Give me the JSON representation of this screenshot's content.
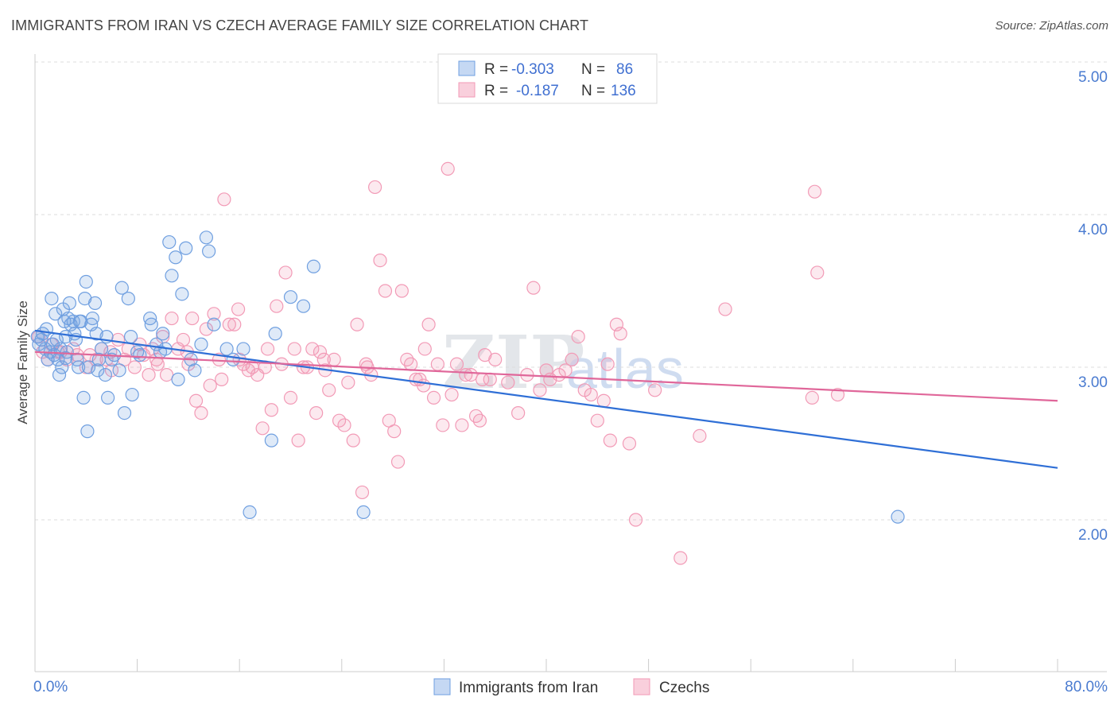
{
  "title": "IMMIGRANTS FROM IRAN VS CZECH AVERAGE FAMILY SIZE CORRELATION CHART",
  "source": "Source: ZipAtlas.com",
  "watermark": {
    "zip": "ZIP",
    "atlas": "atlas"
  },
  "legend": {
    "rows": [
      {
        "r_label": "R =",
        "r_value": "-0.303",
        "n_label": "N =",
        "n_value": "86",
        "color": "#6f9fe0"
      },
      {
        "r_label": "R =",
        "r_value": "-0.187",
        "n_label": "N =",
        "n_value": "136",
        "color": "#f29ab6"
      }
    ]
  },
  "chart_data": {
    "type": "scatter",
    "title": "IMMIGRANTS FROM IRAN VS CZECH AVERAGE FAMILY SIZE CORRELATION CHART",
    "xlabel": "",
    "ylabel": "Average Family Size",
    "xlim": [
      0,
      80
    ],
    "ylim": [
      1.0,
      5.1
    ],
    "x_tick_labels": [
      "0.0%",
      "80.0%"
    ],
    "y_ticks": [
      2.0,
      3.0,
      4.0,
      5.0
    ],
    "y_tick_labels": [
      "2.00",
      "3.00",
      "4.00",
      "5.00"
    ],
    "grid": true,
    "series": [
      {
        "name": "Immigrants from Iran",
        "color": "#6f9fe0",
        "trend": {
          "x": [
            0,
            80
          ],
          "y": [
            3.24,
            2.34
          ]
        },
        "points": [
          [
            0.2,
            3.2
          ],
          [
            0.3,
            3.15
          ],
          [
            0.5,
            3.18
          ],
          [
            0.6,
            3.22
          ],
          [
            0.8,
            3.12
          ],
          [
            0.9,
            3.25
          ],
          [
            1.0,
            3.05
          ],
          [
            1.2,
            3.1
          ],
          [
            1.3,
            3.45
          ],
          [
            1.4,
            3.15
          ],
          [
            1.5,
            3.08
          ],
          [
            1.7,
            3.18
          ],
          [
            1.8,
            3.05
          ],
          [
            1.9,
            2.95
          ],
          [
            2.0,
            3.12
          ],
          [
            2.1,
            3.0
          ],
          [
            2.2,
            3.38
          ],
          [
            2.3,
            3.3
          ],
          [
            2.4,
            3.2
          ],
          [
            2.5,
            3.1
          ],
          [
            2.6,
            3.32
          ],
          [
            2.7,
            3.42
          ],
          [
            2.8,
            3.28
          ],
          [
            3.0,
            3.3
          ],
          [
            3.1,
            3.22
          ],
          [
            3.2,
            3.18
          ],
          [
            3.4,
            3.0
          ],
          [
            3.5,
            3.3
          ],
          [
            3.6,
            3.3
          ],
          [
            3.8,
            2.8
          ],
          [
            3.9,
            3.45
          ],
          [
            4.0,
            3.56
          ],
          [
            4.1,
            2.58
          ],
          [
            4.2,
            3.0
          ],
          [
            4.4,
            3.28
          ],
          [
            4.5,
            3.32
          ],
          [
            4.7,
            3.42
          ],
          [
            4.8,
            3.22
          ],
          [
            5.0,
            3.05
          ],
          [
            5.2,
            3.12
          ],
          [
            5.5,
            2.95
          ],
          [
            5.6,
            3.2
          ],
          [
            5.7,
            2.8
          ],
          [
            6.2,
            3.08
          ],
          [
            6.6,
            2.98
          ],
          [
            6.8,
            3.52
          ],
          [
            7.0,
            2.7
          ],
          [
            7.3,
            3.45
          ],
          [
            7.5,
            3.2
          ],
          [
            7.6,
            2.82
          ],
          [
            8.0,
            3.1
          ],
          [
            8.2,
            3.08
          ],
          [
            9.0,
            3.32
          ],
          [
            9.1,
            3.28
          ],
          [
            9.5,
            3.15
          ],
          [
            10.0,
            3.22
          ],
          [
            10.2,
            3.12
          ],
          [
            10.5,
            3.82
          ],
          [
            10.7,
            3.6
          ],
          [
            11.0,
            3.72
          ],
          [
            11.2,
            2.92
          ],
          [
            11.5,
            3.48
          ],
          [
            11.8,
            3.78
          ],
          [
            12.5,
            2.98
          ],
          [
            13.0,
            3.15
          ],
          [
            13.4,
            3.85
          ],
          [
            13.6,
            3.76
          ],
          [
            14.0,
            3.28
          ],
          [
            15.0,
            3.12
          ],
          [
            15.5,
            3.05
          ],
          [
            16.3,
            3.12
          ],
          [
            16.8,
            2.05
          ],
          [
            18.5,
            2.52
          ],
          [
            18.8,
            3.22
          ],
          [
            20.0,
            3.46
          ],
          [
            21.0,
            3.4
          ],
          [
            21.8,
            3.66
          ],
          [
            25.7,
            2.05
          ],
          [
            67.5,
            2.02
          ],
          [
            2.4,
            3.06
          ],
          [
            1.6,
            3.35
          ],
          [
            4.9,
            2.98
          ],
          [
            6.0,
            3.05
          ],
          [
            9.8,
            3.1
          ],
          [
            12.2,
            3.05
          ],
          [
            3.3,
            3.05
          ]
        ]
      },
      {
        "name": "Czechs",
        "color": "#f29ab6",
        "trend": {
          "x": [
            0,
            80
          ],
          "y": [
            3.1,
            2.78
          ]
        },
        "points": [
          [
            0.3,
            3.2
          ],
          [
            0.6,
            3.1
          ],
          [
            1.0,
            3.05
          ],
          [
            1.3,
            3.15
          ],
          [
            1.8,
            3.1
          ],
          [
            2.5,
            3.05
          ],
          [
            3.0,
            3.12
          ],
          [
            3.3,
            3.08
          ],
          [
            4.0,
            3.0
          ],
          [
            4.3,
            3.08
          ],
          [
            4.8,
            3.05
          ],
          [
            5.2,
            3.12
          ],
          [
            5.6,
            3.05
          ],
          [
            6.0,
            2.98
          ],
          [
            6.5,
            3.18
          ],
          [
            7.0,
            3.05
          ],
          [
            7.3,
            3.12
          ],
          [
            7.8,
            3.0
          ],
          [
            8.2,
            3.15
          ],
          [
            8.5,
            3.08
          ],
          [
            8.9,
            2.95
          ],
          [
            9.2,
            3.12
          ],
          [
            9.6,
            3.02
          ],
          [
            10.0,
            3.2
          ],
          [
            10.3,
            2.95
          ],
          [
            10.7,
            3.32
          ],
          [
            11.2,
            3.12
          ],
          [
            11.6,
            3.18
          ],
          [
            11.9,
            3.1
          ],
          [
            12.3,
            3.32
          ],
          [
            12.6,
            2.78
          ],
          [
            13.0,
            2.7
          ],
          [
            13.4,
            3.25
          ],
          [
            13.7,
            2.88
          ],
          [
            14.0,
            3.35
          ],
          [
            14.4,
            3.05
          ],
          [
            14.8,
            4.1
          ],
          [
            15.2,
            3.28
          ],
          [
            15.6,
            3.28
          ],
          [
            15.9,
            3.38
          ],
          [
            16.3,
            3.02
          ],
          [
            16.7,
            2.98
          ],
          [
            17.0,
            3.0
          ],
          [
            17.4,
            2.95
          ],
          [
            17.8,
            2.6
          ],
          [
            18.2,
            3.12
          ],
          [
            18.5,
            2.72
          ],
          [
            18.9,
            3.4
          ],
          [
            19.3,
            3.02
          ],
          [
            19.6,
            3.62
          ],
          [
            20.0,
            2.8
          ],
          [
            20.3,
            3.12
          ],
          [
            20.6,
            2.52
          ],
          [
            21.0,
            3.0
          ],
          [
            21.3,
            3.0
          ],
          [
            21.7,
            3.12
          ],
          [
            22.0,
            2.7
          ],
          [
            22.3,
            3.1
          ],
          [
            22.7,
            2.98
          ],
          [
            23.0,
            2.85
          ],
          [
            23.4,
            3.05
          ],
          [
            23.8,
            2.65
          ],
          [
            24.2,
            2.62
          ],
          [
            24.5,
            2.9
          ],
          [
            24.9,
            2.52
          ],
          [
            25.2,
            3.28
          ],
          [
            25.6,
            2.18
          ],
          [
            25.9,
            3.02
          ],
          [
            26.3,
            2.95
          ],
          [
            26.6,
            4.18
          ],
          [
            27.0,
            3.7
          ],
          [
            27.4,
            3.5
          ],
          [
            27.7,
            2.65
          ],
          [
            28.1,
            2.58
          ],
          [
            28.4,
            2.38
          ],
          [
            28.7,
            3.5
          ],
          [
            29.1,
            3.05
          ],
          [
            29.4,
            3.02
          ],
          [
            29.8,
            2.92
          ],
          [
            30.1,
            2.92
          ],
          [
            30.5,
            3.12
          ],
          [
            30.8,
            3.28
          ],
          [
            31.2,
            2.8
          ],
          [
            31.5,
            3.02
          ],
          [
            31.9,
            2.62
          ],
          [
            32.3,
            4.3
          ],
          [
            32.6,
            2.82
          ],
          [
            33.0,
            3.02
          ],
          [
            33.4,
            2.62
          ],
          [
            33.7,
            2.95
          ],
          [
            34.1,
            2.95
          ],
          [
            34.5,
            2.68
          ],
          [
            34.8,
            2.65
          ],
          [
            35.2,
            3.08
          ],
          [
            35.6,
            2.92
          ],
          [
            36.0,
            3.05
          ],
          [
            37.0,
            2.9
          ],
          [
            37.8,
            2.7
          ],
          [
            38.5,
            2.95
          ],
          [
            39.0,
            3.52
          ],
          [
            39.5,
            2.85
          ],
          [
            40.3,
            2.92
          ],
          [
            41.0,
            2.95
          ],
          [
            41.5,
            2.98
          ],
          [
            42.0,
            3.05
          ],
          [
            42.5,
            3.2
          ],
          [
            43.0,
            2.85
          ],
          [
            43.5,
            2.82
          ],
          [
            44.0,
            2.65
          ],
          [
            44.5,
            2.78
          ],
          [
            45.0,
            2.52
          ],
          [
            45.5,
            3.28
          ],
          [
            45.8,
            3.22
          ],
          [
            46.5,
            2.5
          ],
          [
            47.0,
            2.0
          ],
          [
            48.5,
            2.85
          ],
          [
            50.5,
            1.75
          ],
          [
            52.0,
            2.55
          ],
          [
            54.0,
            3.38
          ],
          [
            60.8,
            2.8
          ],
          [
            61.0,
            4.15
          ],
          [
            61.2,
            3.62
          ],
          [
            62.8,
            2.82
          ],
          [
            14.6,
            2.92
          ],
          [
            18.0,
            3.0
          ],
          [
            22.6,
            3.05
          ],
          [
            26.0,
            3.0
          ],
          [
            30.4,
            2.88
          ],
          [
            35.0,
            2.92
          ],
          [
            40.0,
            2.98
          ],
          [
            44.8,
            3.02
          ],
          [
            2.0,
            3.1
          ],
          [
            5.9,
            3.1
          ],
          [
            9.5,
            3.05
          ],
          [
            12.0,
            3.02
          ],
          [
            16.0,
            3.05
          ]
        ]
      }
    ]
  },
  "bottom_legend": [
    {
      "label": "Immigrants from Iran",
      "color": "#6f9fe0"
    },
    {
      "label": "Czechs",
      "color": "#f29ab6"
    }
  ]
}
